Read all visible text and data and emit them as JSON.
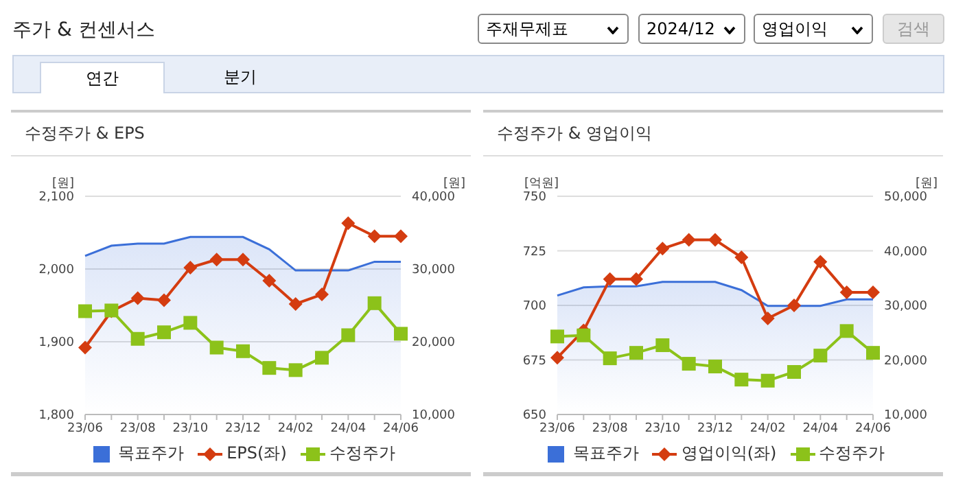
{
  "chart_data": [
    {
      "type": "line",
      "title": "수정주가 & EPS",
      "ylabel": "[원]",
      "y2label": "[원]",
      "annotations": [
        "주가 & 컨센서스",
        "주재무제표",
        "2024/12",
        "영업이익",
        "검색",
        "연간",
        "분기"
      ],
      "categories": [
        "23/06",
        null,
        "23/08",
        null,
        "23/10",
        null,
        "23/12",
        null,
        "24/02",
        null,
        "24/04",
        null,
        "24/06"
      ],
      "series": [
        {
          "name": "목표주가",
          "type": "area",
          "axis": "y2",
          "color": "#3b6fd8",
          "values": [
            31800,
            33200,
            33500,
            33500,
            34400,
            34400,
            34400,
            32700,
            29800,
            29800,
            29800,
            31000,
            31000
          ]
        },
        {
          "name": "EPS(좌)",
          "type": "line",
          "marker": "diamond",
          "color": "#d43c10",
          "values": [
            1892,
            1942,
            1960,
            1957,
            2002,
            2013,
            2013,
            1984,
            1952,
            1965,
            2063,
            2045,
            2045
          ]
        },
        {
          "name": "수정주가",
          "type": "line",
          "axis": "y2",
          "marker": "square",
          "color": "#8cc21a",
          "values": [
            24200,
            24300,
            20400,
            21300,
            22600,
            19200,
            18700,
            16400,
            16100,
            17800,
            20900,
            25300,
            21100
          ]
        }
      ],
      "ylim": [
        1800,
        2100
      ],
      "yticks": [
        {
          "value": 1800,
          "label": "1,800"
        },
        {
          "value": 1900,
          "label": "1,900"
        },
        {
          "value": 2000,
          "label": "2,000"
        },
        {
          "value": 2100,
          "label": "2,100"
        }
      ],
      "y2lim": [
        10000,
        40000
      ],
      "y2ticks": [
        {
          "value": 10000,
          "label": "10,000"
        },
        {
          "value": 20000,
          "label": "20,000"
        },
        {
          "value": 30000,
          "label": "30,000"
        },
        {
          "value": 40000,
          "label": "40,000"
        }
      ],
      "grid": "y",
      "legend": "bottom"
    },
    {
      "type": "line",
      "title": "수정주가 & 영업이익",
      "ylabel": "[억원]",
      "y2label": "[원]",
      "categories": [
        "23/06",
        null,
        "23/08",
        null,
        "23/10",
        null,
        "23/12",
        null,
        "24/02",
        null,
        "24/04",
        null,
        "24/06"
      ],
      "series": [
        {
          "name": "목표주가",
          "type": "area",
          "axis": "y2",
          "color": "#3b6fd8",
          "values": [
            31800,
            33300,
            33500,
            33500,
            34300,
            34300,
            34300,
            32800,
            29900,
            29900,
            29900,
            31100,
            31100
          ]
        },
        {
          "name": "영업이익(좌)",
          "type": "line",
          "marker": "diamond",
          "color": "#d43c10",
          "values": [
            676,
            688.5,
            712,
            712,
            726,
            730,
            730,
            722,
            694,
            700,
            720,
            706,
            706
          ]
        },
        {
          "name": "수정주가",
          "type": "line",
          "axis": "y2",
          "marker": "square",
          "color": "#8cc21a",
          "values": [
            24300,
            24500,
            20300,
            21300,
            22700,
            19300,
            18800,
            16400,
            16200,
            17800,
            20800,
            25300,
            21300
          ]
        }
      ],
      "ylim": [
        650,
        750
      ],
      "yticks": [
        650,
        675,
        700,
        725,
        750
      ],
      "y2lim": [
        10000,
        50000
      ],
      "y2ticks": [
        {
          "value": 10000,
          "label": "10,000"
        },
        {
          "value": 20000,
          "label": "20,000"
        },
        {
          "value": 30000,
          "label": "30,000"
        },
        {
          "value": 40000,
          "label": "40,000"
        },
        {
          "value": 50000,
          "label": "50,000"
        }
      ],
      "grid": "y",
      "legend": "bottom"
    }
  ]
}
